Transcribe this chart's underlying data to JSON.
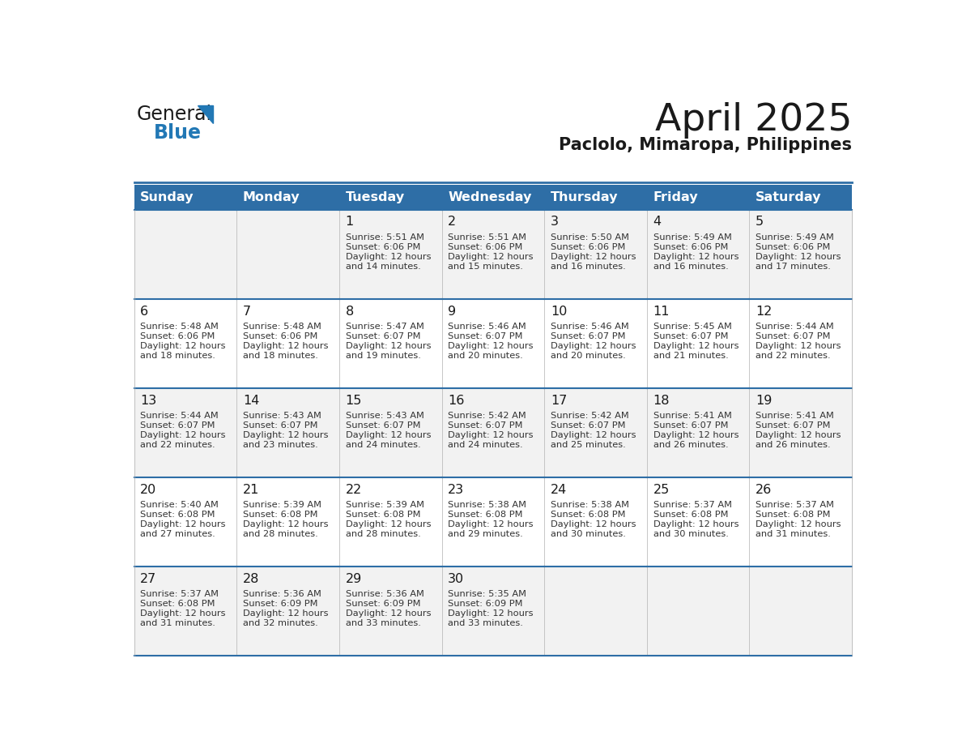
{
  "title": "April 2025",
  "subtitle": "Paclolo, Mimaropa, Philippines",
  "days_of_week": [
    "Sunday",
    "Monday",
    "Tuesday",
    "Wednesday",
    "Thursday",
    "Friday",
    "Saturday"
  ],
  "header_bg": "#2E6EA6",
  "header_text": "#FFFFFF",
  "cell_bg_odd": "#F2F2F2",
  "cell_bg_even": "#FFFFFF",
  "border_color": "#2E6EA6",
  "day_num_color": "#1a1a1a",
  "text_color": "#333333",
  "title_color": "#1a1a1a",
  "logo_blue_color": "#2278B5",
  "calendar_data": [
    [
      null,
      null,
      {
        "day": 1,
        "sunrise": "5:51 AM",
        "sunset": "6:06 PM",
        "daylight": "12 hours",
        "daylight2": "and 14 minutes."
      },
      {
        "day": 2,
        "sunrise": "5:51 AM",
        "sunset": "6:06 PM",
        "daylight": "12 hours",
        "daylight2": "and 15 minutes."
      },
      {
        "day": 3,
        "sunrise": "5:50 AM",
        "sunset": "6:06 PM",
        "daylight": "12 hours",
        "daylight2": "and 16 minutes."
      },
      {
        "day": 4,
        "sunrise": "5:49 AM",
        "sunset": "6:06 PM",
        "daylight": "12 hours",
        "daylight2": "and 16 minutes."
      },
      {
        "day": 5,
        "sunrise": "5:49 AM",
        "sunset": "6:06 PM",
        "daylight": "12 hours",
        "daylight2": "and 17 minutes."
      }
    ],
    [
      {
        "day": 6,
        "sunrise": "5:48 AM",
        "sunset": "6:06 PM",
        "daylight": "12 hours",
        "daylight2": "and 18 minutes."
      },
      {
        "day": 7,
        "sunrise": "5:48 AM",
        "sunset": "6:06 PM",
        "daylight": "12 hours",
        "daylight2": "and 18 minutes."
      },
      {
        "day": 8,
        "sunrise": "5:47 AM",
        "sunset": "6:07 PM",
        "daylight": "12 hours",
        "daylight2": "and 19 minutes."
      },
      {
        "day": 9,
        "sunrise": "5:46 AM",
        "sunset": "6:07 PM",
        "daylight": "12 hours",
        "daylight2": "and 20 minutes."
      },
      {
        "day": 10,
        "sunrise": "5:46 AM",
        "sunset": "6:07 PM",
        "daylight": "12 hours",
        "daylight2": "and 20 minutes."
      },
      {
        "day": 11,
        "sunrise": "5:45 AM",
        "sunset": "6:07 PM",
        "daylight": "12 hours",
        "daylight2": "and 21 minutes."
      },
      {
        "day": 12,
        "sunrise": "5:44 AM",
        "sunset": "6:07 PM",
        "daylight": "12 hours",
        "daylight2": "and 22 minutes."
      }
    ],
    [
      {
        "day": 13,
        "sunrise": "5:44 AM",
        "sunset": "6:07 PM",
        "daylight": "12 hours",
        "daylight2": "and 22 minutes."
      },
      {
        "day": 14,
        "sunrise": "5:43 AM",
        "sunset": "6:07 PM",
        "daylight": "12 hours",
        "daylight2": "and 23 minutes."
      },
      {
        "day": 15,
        "sunrise": "5:43 AM",
        "sunset": "6:07 PM",
        "daylight": "12 hours",
        "daylight2": "and 24 minutes."
      },
      {
        "day": 16,
        "sunrise": "5:42 AM",
        "sunset": "6:07 PM",
        "daylight": "12 hours",
        "daylight2": "and 24 minutes."
      },
      {
        "day": 17,
        "sunrise": "5:42 AM",
        "sunset": "6:07 PM",
        "daylight": "12 hours",
        "daylight2": "and 25 minutes."
      },
      {
        "day": 18,
        "sunrise": "5:41 AM",
        "sunset": "6:07 PM",
        "daylight": "12 hours",
        "daylight2": "and 26 minutes."
      },
      {
        "day": 19,
        "sunrise": "5:41 AM",
        "sunset": "6:07 PM",
        "daylight": "12 hours",
        "daylight2": "and 26 minutes."
      }
    ],
    [
      {
        "day": 20,
        "sunrise": "5:40 AM",
        "sunset": "6:08 PM",
        "daylight": "12 hours",
        "daylight2": "and 27 minutes."
      },
      {
        "day": 21,
        "sunrise": "5:39 AM",
        "sunset": "6:08 PM",
        "daylight": "12 hours",
        "daylight2": "and 28 minutes."
      },
      {
        "day": 22,
        "sunrise": "5:39 AM",
        "sunset": "6:08 PM",
        "daylight": "12 hours",
        "daylight2": "and 28 minutes."
      },
      {
        "day": 23,
        "sunrise": "5:38 AM",
        "sunset": "6:08 PM",
        "daylight": "12 hours",
        "daylight2": "and 29 minutes."
      },
      {
        "day": 24,
        "sunrise": "5:38 AM",
        "sunset": "6:08 PM",
        "daylight": "12 hours",
        "daylight2": "and 30 minutes."
      },
      {
        "day": 25,
        "sunrise": "5:37 AM",
        "sunset": "6:08 PM",
        "daylight": "12 hours",
        "daylight2": "and 30 minutes."
      },
      {
        "day": 26,
        "sunrise": "5:37 AM",
        "sunset": "6:08 PM",
        "daylight": "12 hours",
        "daylight2": "and 31 minutes."
      }
    ],
    [
      {
        "day": 27,
        "sunrise": "5:37 AM",
        "sunset": "6:08 PM",
        "daylight": "12 hours",
        "daylight2": "and 31 minutes."
      },
      {
        "day": 28,
        "sunrise": "5:36 AM",
        "sunset": "6:09 PM",
        "daylight": "12 hours",
        "daylight2": "and 32 minutes."
      },
      {
        "day": 29,
        "sunrise": "5:36 AM",
        "sunset": "6:09 PM",
        "daylight": "12 hours",
        "daylight2": "and 33 minutes."
      },
      {
        "day": 30,
        "sunrise": "5:35 AM",
        "sunset": "6:09 PM",
        "daylight": "12 hours",
        "daylight2": "and 33 minutes."
      },
      null,
      null,
      null
    ]
  ]
}
